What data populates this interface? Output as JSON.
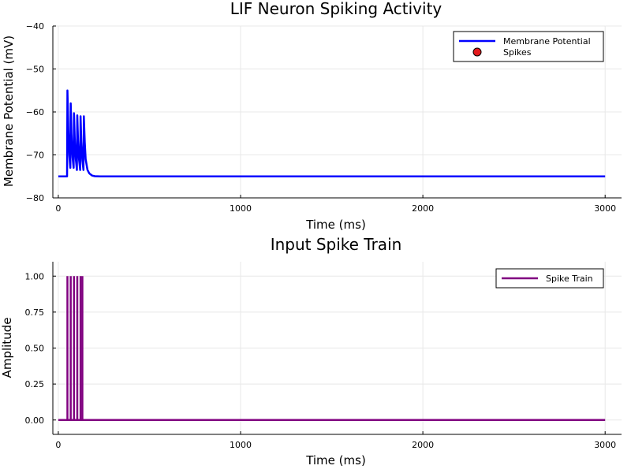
{
  "chart_data": [
    {
      "type": "line",
      "title": "LIF Neuron Spiking Activity",
      "xlabel": "Time (ms)",
      "ylabel": "Membrane Potential (mV)",
      "xlim": [
        -30,
        3090
      ],
      "ylim": [
        -80,
        -40
      ],
      "xticks": [
        0,
        1000,
        2000,
        3000
      ],
      "yticks": [
        -80,
        -70,
        -60,
        -50,
        -40
      ],
      "xtick_labels": [
        "0",
        "1000",
        "2000",
        "3000"
      ],
      "ytick_labels": [
        "−80",
        "−70",
        "−60",
        "−50",
        "−40"
      ],
      "grid": true,
      "legend_position": "top-right",
      "series": [
        {
          "name": "Membrane Potential",
          "kind": "line",
          "color": "#0000ff",
          "x": [
            0,
            48,
            50,
            55,
            60,
            66,
            68,
            72,
            78,
            84,
            86,
            90,
            96,
            102,
            104,
            108,
            114,
            120,
            122,
            126,
            132,
            138,
            140,
            145,
            150,
            160,
            170,
            185,
            200,
            230,
            3000
          ],
          "y": [
            -75,
            -75,
            -55,
            -64,
            -70,
            -73,
            -58,
            -65,
            -70.5,
            -73,
            -60.3,
            -66,
            -71,
            -73.5,
            -60.8,
            -66.5,
            -71.2,
            -73.5,
            -61,
            -66.8,
            -71.3,
            -73.5,
            -61,
            -67,
            -71,
            -73.5,
            -74.3,
            -74.8,
            -74.95,
            -75,
            -75
          ]
        },
        {
          "name": "Spikes",
          "kind": "scatter",
          "color": "#e31a1c",
          "x": [],
          "y": []
        }
      ]
    },
    {
      "type": "line",
      "title": "Input Spike Train",
      "xlabel": "Time (ms)",
      "ylabel": "Amplitude",
      "xlim": [
        -30,
        3090
      ],
      "ylim": [
        -0.1,
        1.1
      ],
      "xticks": [
        0,
        1000,
        2000,
        3000
      ],
      "yticks": [
        0,
        0.25,
        0.5,
        0.75,
        1.0
      ],
      "xtick_labels": [
        "0",
        "1000",
        "2000",
        "3000"
      ],
      "ytick_labels": [
        "0.00",
        "0.25",
        "0.50",
        "0.75",
        "1.00"
      ],
      "grid": true,
      "legend_position": "top-right",
      "series": [
        {
          "name": "Spike Train",
          "kind": "spikes",
          "color": "#800080",
          "spike_times": [
            50,
            68,
            86,
            104,
            122,
            132
          ],
          "baseline": 0,
          "amplitude": 1.0,
          "x_end": 3000
        }
      ]
    }
  ]
}
